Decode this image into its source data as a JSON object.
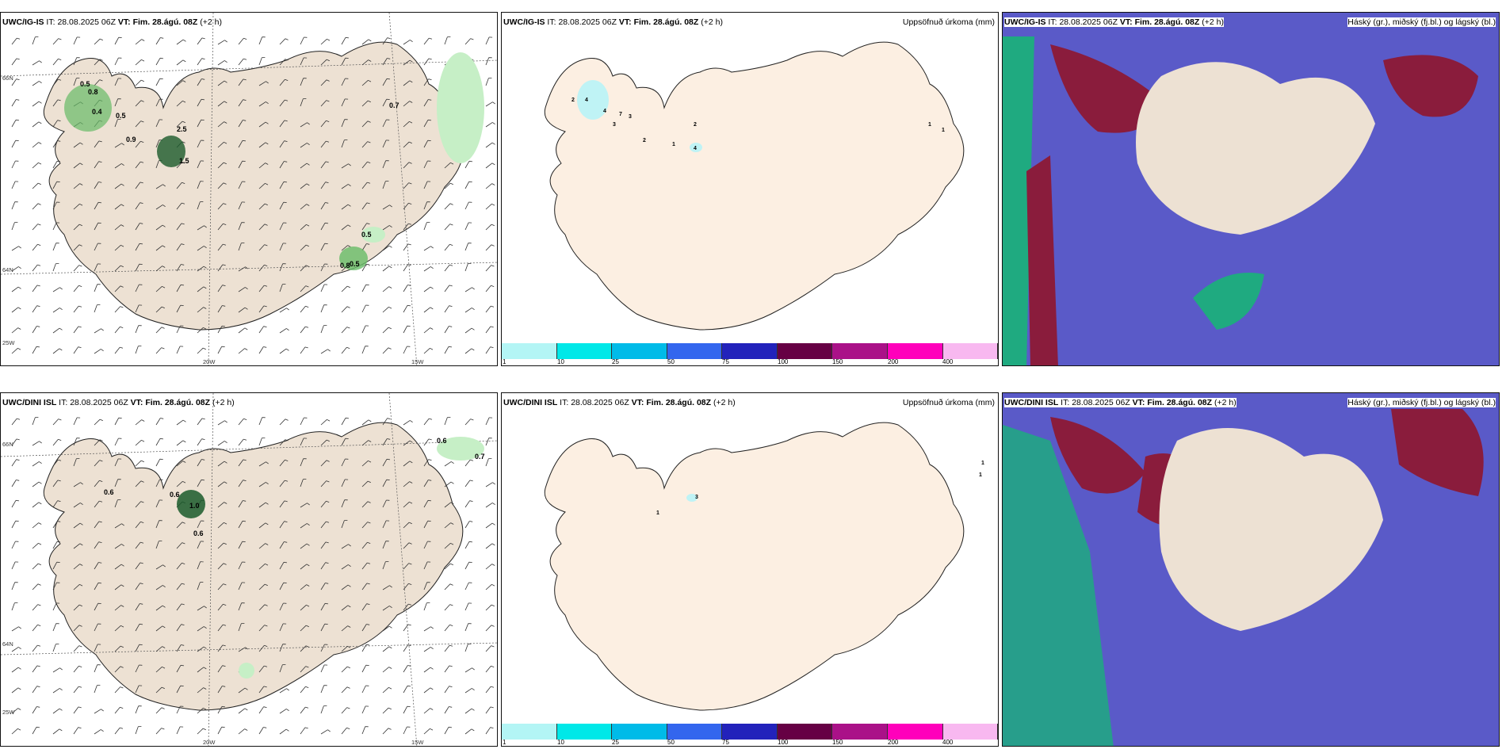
{
  "panels": [
    {
      "model": "UWC/IG-IS",
      "it_label": "IT:",
      "it": "28.08.2025 06Z",
      "vt_label": "VT:",
      "vt": "Fim. 28.ágú. 08Z",
      "lead": "(+2 h)",
      "right_title": ""
    },
    {
      "model": "UWC/IG-IS",
      "it_label": "IT:",
      "it": "28.08.2025 06Z",
      "vt_label": "VT:",
      "vt": "Fim. 28.ágú. 08Z",
      "lead": "(+2 h)",
      "right_title": "Uppsöfnuð úrkoma (mm)"
    },
    {
      "model": "UWC/IG-IS",
      "it_label": "IT:",
      "it": "28.08.2025 06Z",
      "vt_label": "VT:",
      "vt": "Fim. 28.ágú. 08Z",
      "lead": "(+2 h)",
      "right_title": "Háský (gr.), miðský (fj.bl.) og lágský (bl.)"
    },
    {
      "model": "UWC/DINI ISL",
      "it_label": "IT:",
      "it": "28.08.2025 06Z",
      "vt_label": "VT:",
      "vt": "Fim. 28.ágú. 08Z",
      "lead": "(+2 h)",
      "right_title": ""
    },
    {
      "model": "UWC/DINI ISL",
      "it_label": "IT:",
      "it": "28.08.2025 06Z",
      "vt_label": "VT:",
      "vt": "Fim. 28.ágú. 08Z",
      "lead": "(+2 h)",
      "right_title": "Uppsöfnuð úrkoma (mm)"
    },
    {
      "model": "UWC/DINI ISL",
      "it_label": "IT:",
      "it": "28.08.2025 06Z",
      "vt_label": "VT:",
      "vt": "Fim. 28.ágú. 08Z",
      "lead": "(+2 h)",
      "right_title": "Háský (gr.), miðský (fj.bl.) og lágský (bl.)"
    }
  ],
  "axis_labels": {
    "lat66": "66N",
    "lat64": "64N",
    "lon25": "25W",
    "lon20": "20W",
    "lon15": "15W"
  },
  "colorbar": {
    "ticks": [
      "1",
      "10",
      "25",
      "50",
      "75",
      "100",
      "150",
      "200",
      "400"
    ],
    "colors": [
      "#b3f5f5",
      "#00e8e8",
      "#00bbe8",
      "#3366ee",
      "#2222bb",
      "#660044",
      "#aa1188",
      "#ff00bb",
      "#f8b8f0"
    ]
  },
  "wind_precip_top": [
    "0.5",
    "0.8",
    "0.4",
    "0.5",
    "0.9",
    "2.5",
    "1.5",
    "0.7",
    "0.5",
    "0.5",
    "0.8"
  ],
  "wind_precip_bottom": [
    "0.6",
    "0.6",
    "1.0",
    "0.6",
    "0.6",
    "0.7"
  ],
  "accum_top": [
    "2",
    "4",
    "4",
    "7",
    "3",
    "3",
    "2",
    "1",
    "4",
    "2",
    "1",
    "1"
  ],
  "accum_bottom": [
    "1",
    "3",
    "1",
    "1"
  ],
  "colors": {
    "land": "#ede1d3",
    "land_accum": "#fcefe2",
    "ocean": "#ffffff",
    "precip_light": "#c6efc6",
    "precip_mid": "#66bb66",
    "precip_dark": "#1a5a2a",
    "cloud_high_blue": "#5a5ac8",
    "cloud_red": "#8a1c3c",
    "cloud_green": "#1faa80"
  }
}
